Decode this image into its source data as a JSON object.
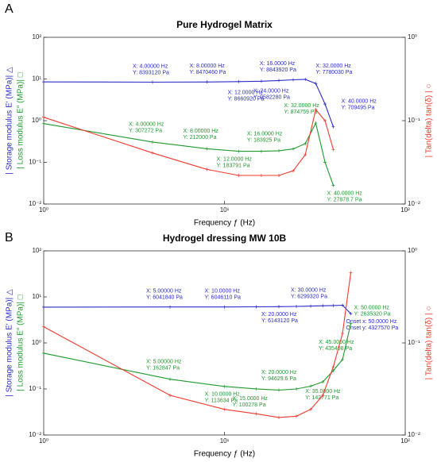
{
  "chart_data": [
    {
      "type": "line",
      "panel": "A",
      "title": "Pure Hydrogel Matrix",
      "x_label": "Frequency ƒ (Hz)",
      "x": [
        1,
        4,
        8,
        12,
        16,
        20,
        24,
        28,
        32,
        36,
        40
      ],
      "xlim": [
        1,
        100
      ],
      "ylim": [
        0.01,
        100
      ],
      "y2lim": [
        0.01,
        1
      ],
      "xlog": true,
      "ylog": true,
      "y2log": true,
      "xticks": [
        {
          "value": 1,
          "label": "10⁰"
        },
        {
          "value": 10,
          "label": "10¹"
        },
        {
          "value": 100,
          "label": "10²"
        }
      ],
      "yticks": [
        {
          "value": 0.01,
          "label": "10⁻²"
        },
        {
          "value": 0.1,
          "label": "10⁻¹"
        },
        {
          "value": 1,
          "label": "10⁰"
        },
        {
          "value": 10,
          "label": "10¹"
        },
        {
          "value": 100,
          "label": "10²"
        }
      ],
      "y2ticks": [
        {
          "value": 0.01,
          "label": "10⁻²"
        },
        {
          "value": 0.1,
          "label": "10⁻¹"
        },
        {
          "value": 1,
          "label": "10⁰"
        }
      ],
      "series": [
        {
          "name": "| Storage modulus E′ (MPa)| △",
          "color": "#2b2bc8",
          "values": [
            8.5,
            8.39312,
            8.47046,
            8.66092,
            8.84392,
            9.2,
            9.58228,
            9.8,
            7.78003,
            2.5,
            0.709495
          ],
          "value_labels": [
            null,
            [
              "X: 4.00000 Hz",
              "Y: 8393120 Pa"
            ],
            [
              "X: 8.00000 Hz",
              "Y: 8470460 Pa"
            ],
            [
              "X: 12.0000 Hz",
              "Y: 8660920 Pa"
            ],
            [
              "X: 16.0000 Hz",
              "Y: 8843920 Pa"
            ],
            null,
            [
              "X: 24.0000 Hz",
              "Y: 9582280 Pa"
            ],
            null,
            [
              "X: 32.0000 Hz",
              "Y: 7780030 Pa"
            ],
            null,
            [
              "X: 40.0000 Hz",
              "Y: 709495 Pa"
            ]
          ]
        },
        {
          "name": "| Loss modulus E″ (MPa)| □",
          "color": "#1e9a2e",
          "values": [
            0.85,
            0.307272,
            0.212,
            0.183791,
            0.183925,
            0.19,
            0.21,
            0.28,
            0.874759,
            0.1,
            0.0278787
          ],
          "value_labels": [
            null,
            [
              "X: 4.00000 Hz",
              "Y: 307272 Pa"
            ],
            [
              "X: 8.00000 Hz",
              "Y: 212000 Pa"
            ],
            [
              "X: 12.0000 Hz",
              "Y: 183791 Pa"
            ],
            [
              "X: 16.0000 Hz",
              "Y: 183925 Pa"
            ],
            null,
            null,
            null,
            [
              "X: 32.0000 Hz",
              "Y: 874759 Pa"
            ],
            null,
            [
              "X: 40.0000 Hz",
              "Y: 27878.7 Pa"
            ]
          ]
        },
        {
          "name": "| Tan(delta) tan(δ) | ○",
          "color": "#f03a2e",
          "axis": "y2",
          "values": [
            0.11,
            0.041,
            0.026,
            0.022,
            0.022,
            0.022,
            0.025,
            0.039,
            0.136,
            0.1,
            0.045
          ]
        }
      ]
    },
    {
      "type": "line",
      "panel": "B",
      "title": "Hydrogel dressing MW 10B",
      "x_label": "Frequency ƒ (Hz)",
      "x": [
        1,
        5,
        10,
        15,
        20,
        25,
        30,
        35,
        40,
        45,
        50
      ],
      "xlim": [
        1,
        100
      ],
      "ylim": [
        0.01,
        100
      ],
      "y2lim": [
        0.01,
        1
      ],
      "xlog": true,
      "ylog": true,
      "y2log": true,
      "xticks": [
        {
          "value": 1,
          "label": "10⁰"
        },
        {
          "value": 10,
          "label": "10¹"
        },
        {
          "value": 100,
          "label": "10²"
        }
      ],
      "yticks": [
        {
          "value": 0.01,
          "label": "10⁻²"
        },
        {
          "value": 0.1,
          "label": "10⁻¹"
        },
        {
          "value": 1,
          "label": "10⁰"
        },
        {
          "value": 10,
          "label": "10¹"
        },
        {
          "value": 100,
          "label": "10²"
        }
      ],
      "y2ticks": [
        {
          "value": 0.01,
          "label": "10⁻²"
        },
        {
          "value": 0.1,
          "label": "10⁻¹"
        },
        {
          "value": 1,
          "label": "10⁰"
        }
      ],
      "series": [
        {
          "name": "| Storage modulus E′ (MPa)| △",
          "color": "#2b2bc8",
          "values": [
            6.0,
            6.04184,
            6.04611,
            6.1,
            6.14312,
            6.2,
            6.29932,
            6.4,
            6.5,
            6.6,
            4.32757
          ],
          "value_labels": [
            null,
            [
              "X: 5.00000 Hz",
              "Y: 6041840 Pa"
            ],
            [
              "X: 10.0000 Hz",
              "Y: 6046110 Pa"
            ],
            null,
            [
              "X: 20.0000 Hz",
              "Y: 6143120 Pa"
            ],
            null,
            [
              "X: 30.0000 Hz",
              "Y: 6299320 Pa"
            ],
            null,
            null,
            null,
            [
              "Onset x: 50.0000 Hz",
              "Onset y: 4327570 Pa"
            ]
          ]
        },
        {
          "name": "| Loss modulus E″ (MPa)| □",
          "color": "#1e9a2e",
          "values": [
            0.6,
            0.162847,
            0.113634,
            0.100278,
            0.0946296,
            0.1,
            0.115,
            0.142771,
            0.25,
            0.435498,
            2.63532
          ],
          "value_labels": [
            null,
            [
              "X: 5.00000 Hz",
              "Y: 162847 Pa"
            ],
            [
              "X: 10.0000 Hz",
              "Y: 113634 Pa"
            ],
            [
              "X: 15.0000 Hz",
              "Y: 100278 Pa"
            ],
            [
              "X: 20.0000 Hz",
              "Y: 94629.6 Pa"
            ],
            null,
            null,
            [
              "X: 35.0000 Hz",
              "Y: 142771 Pa"
            ],
            null,
            [
              "X: 45.0000 Hz",
              "Y: 435498 Pa"
            ],
            [
              "X: 50.0000 Hz",
              "Y: 2635320 Pa"
            ]
          ]
        },
        {
          "name": "| Tan(delta) tan(δ) | ○",
          "color": "#f03a2e",
          "axis": "y2",
          "values": [
            0.15,
            0.027,
            0.019,
            0.017,
            0.0155,
            0.016,
            0.019,
            0.027,
            0.055,
            0.127,
            0.58
          ]
        }
      ]
    }
  ]
}
